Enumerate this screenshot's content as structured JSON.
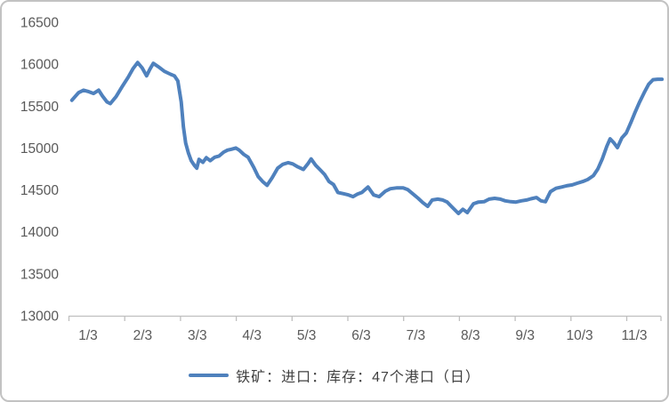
{
  "chart_data": {
    "type": "line",
    "title": "",
    "legend_label": "铁矿：进口：库存：47个港口（日）",
    "legend_position": "bottom-center",
    "grid": false,
    "x_tick_labels": [
      "1/3",
      "2/3",
      "3/3",
      "4/3",
      "5/3",
      "6/3",
      "7/3",
      "8/3",
      "9/3",
      "10/3",
      "11/3"
    ],
    "y_ticks": [
      13000,
      13500,
      14000,
      14500,
      15000,
      15500,
      16000,
      16500
    ],
    "ylim": [
      13000,
      16500
    ],
    "x_unit_note": "x of each point is measured in x-axis tick intervals from the 1/3 tick (0 = 1/3, 10 = 11/3)",
    "axis_color": "#BFBFBF",
    "tick_label_color": "#595959",
    "legend_text_color": "#404040",
    "background_color": "#FFFFFF",
    "border_color": "#C2C2C2",
    "series": [
      {
        "name": "铁矿：进口：库存：47个港口（日）",
        "color": "#4F81BD",
        "points": [
          [
            0.06,
            15570
          ],
          [
            0.18,
            15660
          ],
          [
            0.27,
            15690
          ],
          [
            0.35,
            15675
          ],
          [
            0.45,
            15650
          ],
          [
            0.54,
            15690
          ],
          [
            0.61,
            15620
          ],
          [
            0.69,
            15550
          ],
          [
            0.75,
            15530
          ],
          [
            0.85,
            15610
          ],
          [
            0.96,
            15730
          ],
          [
            1.07,
            15845
          ],
          [
            1.16,
            15950
          ],
          [
            1.24,
            16020
          ],
          [
            1.32,
            15955
          ],
          [
            1.4,
            15860
          ],
          [
            1.46,
            15940
          ],
          [
            1.52,
            16010
          ],
          [
            1.63,
            15960
          ],
          [
            1.72,
            15915
          ],
          [
            1.83,
            15880
          ],
          [
            1.9,
            15860
          ],
          [
            1.96,
            15800
          ],
          [
            2.02,
            15550
          ],
          [
            2.06,
            15250
          ],
          [
            2.1,
            15060
          ],
          [
            2.15,
            14940
          ],
          [
            2.2,
            14850
          ],
          [
            2.26,
            14790
          ],
          [
            2.3,
            14760
          ],
          [
            2.34,
            14865
          ],
          [
            2.41,
            14830
          ],
          [
            2.47,
            14885
          ],
          [
            2.54,
            14850
          ],
          [
            2.62,
            14890
          ],
          [
            2.7,
            14905
          ],
          [
            2.78,
            14950
          ],
          [
            2.85,
            14975
          ],
          [
            2.92,
            14985
          ],
          [
            3.0,
            15000
          ],
          [
            3.06,
            14975
          ],
          [
            3.14,
            14925
          ],
          [
            3.22,
            14890
          ],
          [
            3.32,
            14770
          ],
          [
            3.4,
            14660
          ],
          [
            3.48,
            14600
          ],
          [
            3.56,
            14555
          ],
          [
            3.65,
            14645
          ],
          [
            3.75,
            14760
          ],
          [
            3.84,
            14805
          ],
          [
            3.94,
            14825
          ],
          [
            4.02,
            14810
          ],
          [
            4.11,
            14775
          ],
          [
            4.21,
            14745
          ],
          [
            4.29,
            14810
          ],
          [
            4.35,
            14870
          ],
          [
            4.43,
            14795
          ],
          [
            4.51,
            14740
          ],
          [
            4.59,
            14685
          ],
          [
            4.67,
            14600
          ],
          [
            4.75,
            14565
          ],
          [
            4.83,
            14470
          ],
          [
            4.93,
            14455
          ],
          [
            5.02,
            14440
          ],
          [
            5.1,
            14420
          ],
          [
            5.18,
            14450
          ],
          [
            5.26,
            14470
          ],
          [
            5.37,
            14535
          ],
          [
            5.47,
            14440
          ],
          [
            5.57,
            14420
          ],
          [
            5.68,
            14485
          ],
          [
            5.77,
            14515
          ],
          [
            5.89,
            14525
          ],
          [
            6.0,
            14525
          ],
          [
            6.08,
            14505
          ],
          [
            6.17,
            14455
          ],
          [
            6.27,
            14400
          ],
          [
            6.35,
            14350
          ],
          [
            6.44,
            14305
          ],
          [
            6.52,
            14380
          ],
          [
            6.62,
            14390
          ],
          [
            6.71,
            14380
          ],
          [
            6.79,
            14355
          ],
          [
            6.87,
            14300
          ],
          [
            6.99,
            14220
          ],
          [
            7.07,
            14270
          ],
          [
            7.15,
            14230
          ],
          [
            7.26,
            14335
          ],
          [
            7.35,
            14355
          ],
          [
            7.45,
            14360
          ],
          [
            7.54,
            14390
          ],
          [
            7.64,
            14400
          ],
          [
            7.74,
            14390
          ],
          [
            7.83,
            14370
          ],
          [
            7.93,
            14360
          ],
          [
            8.02,
            14355
          ],
          [
            8.12,
            14370
          ],
          [
            8.21,
            14380
          ],
          [
            8.29,
            14395
          ],
          [
            8.39,
            14410
          ],
          [
            8.47,
            14370
          ],
          [
            8.55,
            14360
          ],
          [
            8.64,
            14480
          ],
          [
            8.74,
            14520
          ],
          [
            8.84,
            14535
          ],
          [
            8.93,
            14550
          ],
          [
            9.03,
            14560
          ],
          [
            9.12,
            14580
          ],
          [
            9.22,
            14600
          ],
          [
            9.31,
            14625
          ],
          [
            9.41,
            14670
          ],
          [
            9.49,
            14750
          ],
          [
            9.57,
            14870
          ],
          [
            9.65,
            15020
          ],
          [
            9.71,
            15110
          ],
          [
            9.78,
            15060
          ],
          [
            9.84,
            15005
          ],
          [
            9.92,
            15120
          ],
          [
            10.0,
            15180
          ],
          [
            10.08,
            15300
          ],
          [
            10.16,
            15430
          ],
          [
            10.24,
            15550
          ],
          [
            10.32,
            15660
          ],
          [
            10.4,
            15760
          ],
          [
            10.48,
            15815
          ],
          [
            10.56,
            15820
          ],
          [
            10.64,
            15820
          ]
        ]
      }
    ]
  }
}
